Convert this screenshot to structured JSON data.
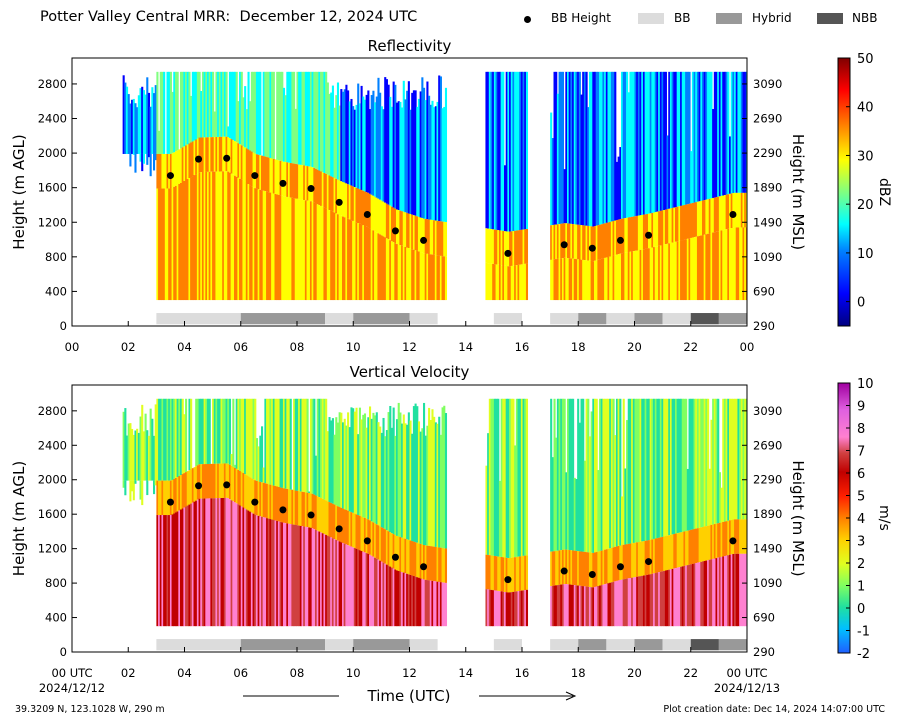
{
  "header": {
    "title": "Potter Valley Central MRR:  December 12, 2024 UTC"
  },
  "legend": {
    "items": [
      {
        "label": "BB Height",
        "kind": "dot",
        "color": "#000000"
      },
      {
        "label": "BB",
        "kind": "swatch",
        "color": "#dcdcdc"
      },
      {
        "label": "Hybrid",
        "kind": "swatch",
        "color": "#999999"
      },
      {
        "label": "NBB",
        "kind": "swatch",
        "color": "#555555"
      }
    ]
  },
  "axes": {
    "left_label": "Height (m AGL)",
    "right_label": "Height (m MSL)",
    "left_ticks": [
      "0",
      "400",
      "800",
      "1200",
      "1600",
      "2000",
      "2400",
      "2800"
    ],
    "right_ticks": [
      "290",
      "690",
      "1090",
      "1490",
      "1890",
      "2290",
      "2690",
      "3090"
    ],
    "x_ticks_top": [
      "00",
      "02",
      "04",
      "06",
      "08",
      "10",
      "12",
      "14",
      "16",
      "18",
      "20",
      "22",
      "00"
    ],
    "x_ticks_bottom": [
      "00 UTC",
      "02",
      "04",
      "06",
      "08",
      "10",
      "12",
      "14",
      "16",
      "18",
      "20",
      "22",
      "00 UTC"
    ],
    "x_start_date": "2024/12/12",
    "x_end_date": "2024/12/13",
    "x_label": "Time (UTC)"
  },
  "panels": [
    {
      "title": "Reflectivity",
      "colorbar_label": "dBZ",
      "colorbar_ticks": [
        "50",
        "40",
        "30",
        "20",
        "10",
        "0"
      ],
      "colors": [
        "#00007f",
        "#0000ff",
        "#0080ff",
        "#00ffff",
        "#80ff80",
        "#ffff00",
        "#ff8000",
        "#ff0000",
        "#7f0000"
      ]
    },
    {
      "title": "Vertical Velocity",
      "colorbar_label": "m/s",
      "colorbar_ticks": [
        "10",
        "9",
        "8",
        "7",
        "6",
        "5",
        "4",
        "3",
        "2",
        "1",
        "0",
        "-1",
        "-2"
      ],
      "colors": [
        "#1f5fff",
        "#00c0ff",
        "#20e0a0",
        "#80ff60",
        "#e0ff20",
        "#ffd000",
        "#ff8000",
        "#ff2000",
        "#c00000",
        "#d04040",
        "#ff80d0",
        "#e060e0",
        "#a000a0"
      ]
    }
  ],
  "chart_data": {
    "type": "heatmap",
    "x_unit": "hour UTC",
    "xlim": [
      0,
      24
    ],
    "ylim_agl": [
      0,
      3100
    ],
    "msl_offset_m": 290,
    "bb_height": {
      "x": [
        3.5,
        4.5,
        5.5,
        6.5,
        7.5,
        8.5,
        9.5,
        10.5,
        11.5,
        12.5,
        15.5,
        17.5,
        18.5,
        19.5,
        20.5,
        23.5
      ],
      "y": [
        1740,
        1930,
        1940,
        1740,
        1650,
        1590,
        1430,
        1290,
        1100,
        990,
        840,
        940,
        900,
        990,
        1050,
        1290
      ]
    },
    "bb_type_segments": [
      {
        "start": 3.0,
        "end": 6.0,
        "type": "BB"
      },
      {
        "start": 6.0,
        "end": 9.0,
        "type": "Hybrid"
      },
      {
        "start": 9.0,
        "end": 10.0,
        "type": "BB"
      },
      {
        "start": 10.0,
        "end": 12.0,
        "type": "Hybrid"
      },
      {
        "start": 12.0,
        "end": 13.0,
        "type": "BB"
      },
      {
        "start": 15.0,
        "end": 16.0,
        "type": "BB"
      },
      {
        "start": 17.0,
        "end": 18.0,
        "type": "BB"
      },
      {
        "start": 18.0,
        "end": 19.0,
        "type": "Hybrid"
      },
      {
        "start": 19.0,
        "end": 20.0,
        "type": "BB"
      },
      {
        "start": 20.0,
        "end": 21.0,
        "type": "Hybrid"
      },
      {
        "start": 21.0,
        "end": 22.0,
        "type": "BB"
      },
      {
        "start": 22.0,
        "end": 23.0,
        "type": "NBB"
      },
      {
        "start": 23.0,
        "end": 24.0,
        "type": "Hybrid"
      }
    ],
    "data_coverage_hours": [
      [
        1.8,
        13.3
      ],
      [
        14.7,
        16.2
      ],
      [
        17.0,
        24.0
      ]
    ]
  },
  "footer": {
    "location": "39.3209 N, 123.1028 W, 290 m",
    "created": "Plot creation date: Dec 14, 2024 14:07:00 UTC"
  }
}
